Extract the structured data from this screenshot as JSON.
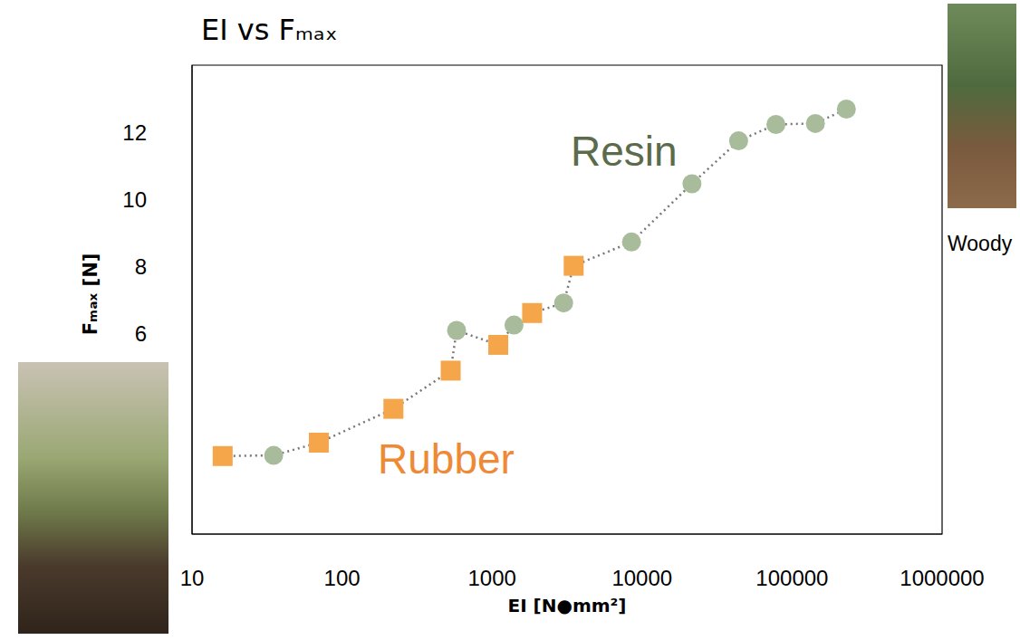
{
  "chart_data": {
    "type": "scatter",
    "title": "EI vs Fₘₐₓ",
    "x_label": "EI [N●mm²]",
    "y_label": "Fₘₐₓ [N]",
    "log": "x",
    "line_style": "dotted",
    "grid": false,
    "x": [
      16,
      35,
      70,
      220,
      530,
      580,
      1100,
      1400,
      1850,
      3000,
      3500,
      8500,
      21500,
      44000,
      78000,
      143000,
      230000
    ],
    "series": [
      {
        "name": "Rubber",
        "color": "#f5a54a",
        "marker": "square",
        "values": [
          2.33,
          null,
          2.73,
          3.74,
          4.88,
          null,
          5.65,
          null,
          6.6,
          null,
          8.01,
          null,
          null,
          null,
          null,
          null,
          null
        ]
      },
      {
        "name": "Resin",
        "color": "#a8bb9b",
        "marker": "circle",
        "values": [
          null,
          2.35,
          null,
          null,
          null,
          6.08,
          null,
          6.24,
          null,
          6.9,
          null,
          8.72,
          10.46,
          11.74,
          12.23,
          12.26,
          12.69
        ]
      }
    ],
    "xlim": [
      10,
      1000000
    ],
    "xticks": [
      10,
      100,
      1000,
      10000,
      100000,
      1000000
    ],
    "ylim": [
      0,
      14
    ],
    "yticks": [
      6,
      8,
      10,
      12
    ],
    "annotations": [
      "Woody"
    ]
  }
}
